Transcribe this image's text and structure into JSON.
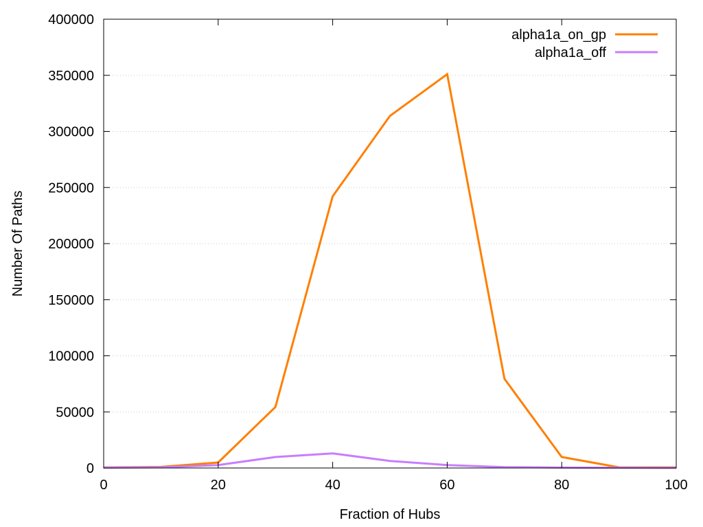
{
  "chart_data": {
    "type": "line",
    "title": "",
    "xlabel": "Fraction of Hubs",
    "ylabel": "Number Of Paths",
    "xlim": [
      0,
      100
    ],
    "ylim": [
      0,
      400000
    ],
    "xticks": [
      0,
      20,
      40,
      60,
      80,
      100
    ],
    "yticks": [
      0,
      50000,
      100000,
      150000,
      200000,
      250000,
      300000,
      350000,
      400000
    ],
    "grid": "horizontal dotted at y ticks",
    "legend_placement": "top-right",
    "x": [
      0,
      10,
      20,
      30,
      40,
      50,
      60,
      70,
      80,
      90,
      100
    ],
    "series": [
      {
        "name": "alpha1a_on_gp",
        "color": "#ff7f00",
        "values": [
          500,
          1000,
          4900,
          54400,
          242200,
          313800,
          351000,
          79500,
          9800,
          600,
          500
        ]
      },
      {
        "name": "alpha1a_off",
        "color": "#c77dff",
        "values": [
          300,
          600,
          2600,
          9800,
          13000,
          6300,
          2600,
          800,
          400,
          200,
          100
        ]
      }
    ]
  }
}
